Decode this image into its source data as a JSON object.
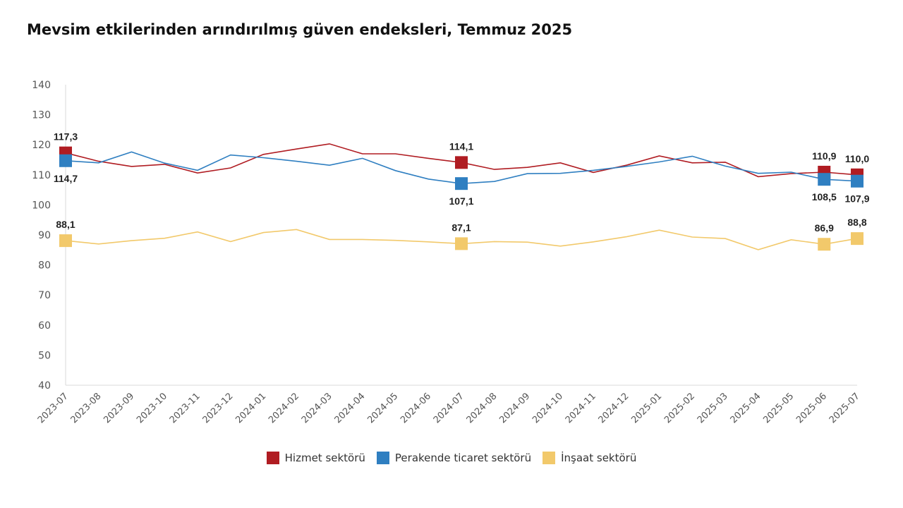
{
  "chart_data": {
    "type": "line",
    "title": "Mevsim etkilerinden arındırılmış güven endeksleri, Temmuz 2025",
    "xlabel": "",
    "ylabel": "",
    "ylim": [
      40,
      140
    ],
    "yticks": [
      "40",
      "50",
      "60",
      "70",
      "80",
      "90",
      "100",
      "110",
      "120",
      "130",
      "140"
    ],
    "categories": [
      "2023-07",
      "2023-08",
      "2023-09",
      "2023-10",
      "2023-11",
      "2023-12",
      "2024-01",
      "2024-02",
      "2024-03",
      "2024-04",
      "2024-05",
      "2024-06",
      "2024-07",
      "2024-08",
      "2024-09",
      "2024-10",
      "2024-11",
      "2024-12",
      "2025-01",
      "2025-02",
      "2025-03",
      "2025-04",
      "2025-05",
      "2025-06",
      "2025-07"
    ],
    "grid": false,
    "legend_position": "bottom",
    "series": [
      {
        "name": "Hizmet sektörü",
        "color": "#b01c22",
        "values": [
          117.3,
          114.5,
          112.8,
          113.5,
          110.6,
          112.3,
          116.8,
          118.6,
          120.3,
          117.0,
          117.0,
          115.5,
          114.1,
          111.8,
          112.5,
          114.0,
          110.8,
          113.2,
          116.3,
          114.0,
          114.2,
          109.4,
          110.4,
          110.9,
          110.0
        ],
        "labels": {
          "0": "117,3",
          "12": "114,1",
          "23": "110,9",
          "24": "110,0"
        }
      },
      {
        "name": "Perakende ticaret sektörü",
        "color": "#2f7fc1",
        "values": [
          114.7,
          114.0,
          117.6,
          113.9,
          111.5,
          116.6,
          115.7,
          114.5,
          113.2,
          115.5,
          111.4,
          108.6,
          107.1,
          107.8,
          110.4,
          110.5,
          111.5,
          112.8,
          114.3,
          116.2,
          112.9,
          110.5,
          110.9,
          108.5,
          107.9
        ],
        "labels": {
          "0": "114,7",
          "12": "107,1",
          "23": "108,5",
          "24": "107,9"
        }
      },
      {
        "name": "İnşaat sektörü",
        "color": "#f2c96b",
        "values": [
          88.1,
          87.0,
          88.1,
          88.9,
          91.0,
          87.8,
          90.8,
          91.8,
          88.5,
          88.5,
          88.2,
          87.7,
          87.1,
          87.8,
          87.6,
          86.3,
          87.7,
          89.4,
          91.6,
          89.3,
          88.8,
          85.1,
          88.4,
          86.9,
          88.8
        ],
        "labels": {
          "0": "88,1",
          "12": "87,1",
          "23": "86,9",
          "24": "88,8"
        }
      }
    ]
  }
}
